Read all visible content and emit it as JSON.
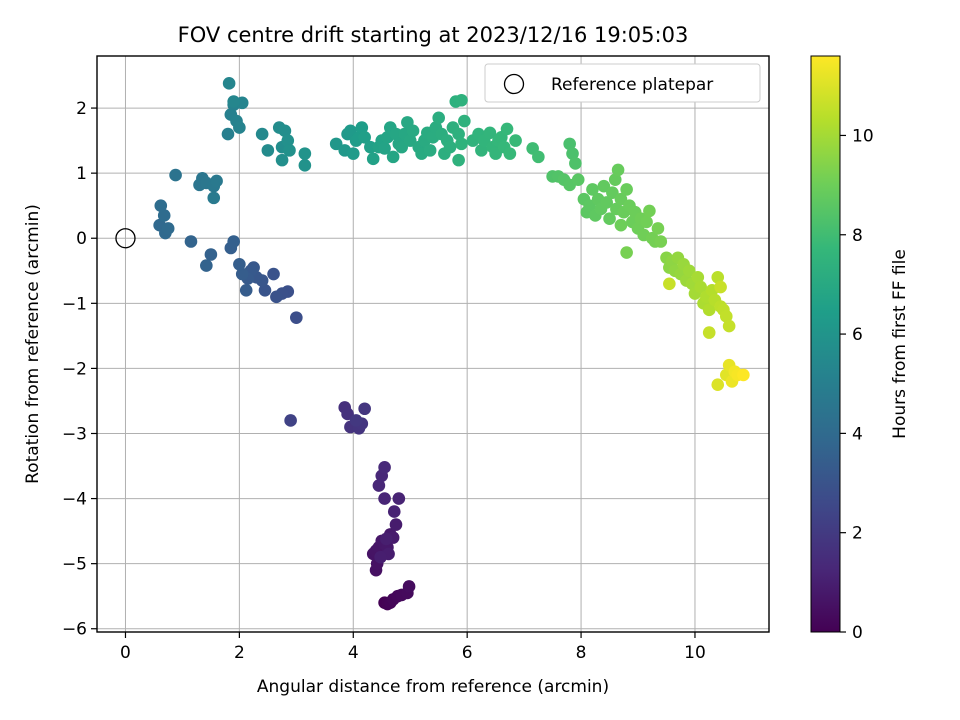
{
  "chart_data": {
    "type": "scatter",
    "title": "FOV centre drift starting at 2023/12/16 19:05:03",
    "xlabel": "Angular distance from reference (arcmin)",
    "ylabel": "Rotation from reference (arcmin)",
    "xlim": [
      -0.5,
      11.3
    ],
    "ylim": [
      -6.05,
      2.8
    ],
    "xticks": [
      0,
      2,
      4,
      6,
      8,
      10
    ],
    "yticks": [
      -6,
      -5,
      -4,
      -3,
      -2,
      -1,
      0,
      1,
      2
    ],
    "xtick_labels": [
      "0",
      "2",
      "4",
      "6",
      "8",
      "10"
    ],
    "ytick_labels": [
      "−6",
      "−5",
      "−4",
      "−3",
      "−2",
      "−1",
      "0",
      "1",
      "2"
    ],
    "grid": true,
    "legend": {
      "placement": "top-right",
      "entries": [
        "Reference platepar"
      ]
    },
    "reference_point": {
      "x": 0,
      "y": 0,
      "label": "Reference platepar"
    },
    "colorbar": {
      "label": "Hours from first FF file",
      "colormap": "viridis",
      "range": [
        0,
        11.6
      ],
      "ticks": [
        0,
        2,
        4,
        6,
        8,
        10
      ],
      "tick_labels": [
        "0",
        "2",
        "4",
        "6",
        "8",
        "10"
      ],
      "colors": [
        "#440154",
        "#482878",
        "#3e4989",
        "#31688e",
        "#26828e",
        "#1f9e89",
        "#35b779",
        "#6ece58",
        "#b5de2b",
        "#fde725"
      ]
    },
    "points": [
      [
        4.55,
        -5.6,
        0.0
      ],
      [
        4.6,
        -5.62,
        0.05
      ],
      [
        4.65,
        -5.6,
        0.1
      ],
      [
        4.7,
        -5.55,
        0.15
      ],
      [
        4.78,
        -5.5,
        0.2
      ],
      [
        4.85,
        -5.48,
        0.25
      ],
      [
        4.95,
        -5.45,
        0.3
      ],
      [
        4.98,
        -5.35,
        0.35
      ],
      [
        4.4,
        -5.1,
        0.5
      ],
      [
        4.42,
        -5.0,
        0.55
      ],
      [
        4.35,
        -4.85,
        0.6
      ],
      [
        4.4,
        -4.8,
        0.62
      ],
      [
        4.45,
        -4.75,
        0.65
      ],
      [
        4.5,
        -4.65,
        0.7
      ],
      [
        4.55,
        -4.7,
        0.72
      ],
      [
        4.6,
        -4.75,
        0.75
      ],
      [
        4.65,
        -4.55,
        0.8
      ],
      [
        4.7,
        -4.6,
        0.85
      ],
      [
        4.75,
        -4.4,
        0.9
      ],
      [
        4.62,
        -4.85,
        0.92
      ],
      [
        4.48,
        -4.9,
        0.95
      ],
      [
        4.58,
        -4.62,
        0.98
      ],
      [
        4.72,
        -4.2,
        1.1
      ],
      [
        4.8,
        -4.0,
        1.15
      ],
      [
        4.55,
        -4.0,
        1.2
      ],
      [
        4.45,
        -3.8,
        1.25
      ],
      [
        4.5,
        -3.65,
        1.3
      ],
      [
        4.55,
        -3.52,
        1.35
      ],
      [
        3.85,
        -2.6,
        1.6
      ],
      [
        3.9,
        -2.7,
        1.65
      ],
      [
        3.95,
        -2.9,
        1.7
      ],
      [
        4.1,
        -2.92,
        1.75
      ],
      [
        4.15,
        -2.85,
        1.8
      ],
      [
        4.2,
        -2.62,
        1.85
      ],
      [
        4.05,
        -2.8,
        1.9
      ],
      [
        2.9,
        -2.8,
        2.3
      ],
      [
        3.0,
        -1.22,
        2.8
      ],
      [
        2.85,
        -0.82,
        2.85
      ],
      [
        2.75,
        -0.85,
        2.9
      ],
      [
        2.65,
        -0.9,
        2.95
      ],
      [
        2.6,
        -0.55,
        3.0
      ],
      [
        2.45,
        -0.8,
        3.05
      ],
      [
        2.4,
        -0.65,
        3.1
      ],
      [
        2.3,
        -0.6,
        3.15
      ],
      [
        2.25,
        -0.45,
        3.2
      ],
      [
        2.2,
        -0.5,
        3.25
      ],
      [
        2.15,
        -0.62,
        3.3
      ],
      [
        2.12,
        -0.8,
        3.35
      ],
      [
        2.05,
        -0.55,
        3.4
      ],
      [
        2.0,
        -0.4,
        3.45
      ],
      [
        1.85,
        -0.15,
        3.5
      ],
      [
        1.9,
        -0.05,
        3.55
      ],
      [
        1.5,
        -0.25,
        3.6
      ],
      [
        1.42,
        -0.42,
        3.65
      ],
      [
        1.15,
        -0.05,
        3.7
      ],
      [
        0.6,
        0.2,
        3.9
      ],
      [
        0.7,
        0.08,
        3.95
      ],
      [
        0.75,
        0.15,
        4.0
      ],
      [
        0.68,
        0.35,
        4.05
      ],
      [
        0.62,
        0.5,
        4.1
      ],
      [
        0.88,
        0.97,
        4.4
      ],
      [
        1.3,
        0.82,
        4.5
      ],
      [
        1.35,
        0.92,
        4.55
      ],
      [
        1.42,
        0.85,
        4.6
      ],
      [
        1.55,
        0.8,
        4.65
      ],
      [
        1.6,
        0.88,
        4.7
      ],
      [
        1.55,
        0.62,
        4.75
      ],
      [
        1.8,
        1.6,
        5.0
      ],
      [
        1.85,
        1.9,
        5.05
      ],
      [
        1.9,
        2.05,
        5.1
      ],
      [
        1.95,
        1.8,
        5.15
      ],
      [
        2.0,
        1.7,
        5.2
      ],
      [
        2.05,
        2.08,
        5.25
      ],
      [
        1.82,
        2.38,
        5.3
      ],
      [
        1.9,
        2.1,
        5.35
      ],
      [
        2.4,
        1.6,
        5.5
      ],
      [
        2.5,
        1.35,
        5.55
      ],
      [
        2.7,
        1.7,
        5.6
      ],
      [
        2.75,
        1.4,
        5.65
      ],
      [
        2.8,
        1.65,
        5.7
      ],
      [
        2.75,
        1.2,
        5.75
      ],
      [
        2.85,
        1.5,
        5.8
      ],
      [
        2.88,
        1.35,
        5.85
      ],
      [
        3.15,
        1.12,
        5.9
      ],
      [
        3.15,
        1.3,
        5.95
      ],
      [
        3.7,
        1.45,
        6.1
      ],
      [
        3.85,
        1.35,
        6.15
      ],
      [
        3.9,
        1.6,
        6.2
      ],
      [
        3.95,
        1.65,
        6.25
      ],
      [
        4.0,
        1.3,
        6.3
      ],
      [
        4.05,
        1.5,
        6.35
      ],
      [
        4.1,
        1.55,
        6.4
      ],
      [
        4.15,
        1.7,
        6.45
      ],
      [
        4.2,
        1.55,
        6.5
      ],
      [
        4.3,
        1.4,
        6.55
      ],
      [
        4.35,
        1.22,
        6.6
      ],
      [
        4.45,
        1.4,
        6.65
      ],
      [
        4.5,
        1.5,
        6.7
      ],
      [
        4.55,
        1.38,
        6.72
      ],
      [
        4.6,
        1.55,
        6.75
      ],
      [
        4.65,
        1.7,
        6.8
      ],
      [
        4.7,
        1.25,
        6.82
      ],
      [
        4.75,
        1.6,
        6.85
      ],
      [
        4.8,
        1.45,
        6.88
      ],
      [
        4.85,
        1.4,
        6.9
      ],
      [
        4.9,
        1.6,
        6.92
      ],
      [
        4.95,
        1.78,
        6.95
      ],
      [
        5.0,
        1.5,
        6.97
      ],
      [
        5.05,
        1.65,
        7.0
      ],
      [
        5.15,
        1.4,
        7.02
      ],
      [
        5.2,
        1.3,
        7.05
      ],
      [
        5.25,
        1.5,
        7.07
      ],
      [
        5.3,
        1.62,
        7.1
      ],
      [
        5.35,
        1.35,
        7.12
      ],
      [
        5.4,
        1.55,
        7.15
      ],
      [
        5.45,
        1.7,
        7.17
      ],
      [
        5.5,
        1.85,
        7.2
      ],
      [
        5.55,
        1.6,
        7.22
      ],
      [
        5.6,
        1.3,
        7.25
      ],
      [
        5.65,
        1.5,
        7.27
      ],
      [
        5.7,
        1.4,
        7.3
      ],
      [
        5.75,
        1.7,
        7.32
      ],
      [
        5.8,
        2.1,
        7.35
      ],
      [
        5.85,
        1.6,
        7.37
      ],
      [
        5.9,
        2.12,
        7.4
      ],
      [
        5.95,
        1.8,
        7.42
      ],
      [
        5.85,
        1.2,
        7.44
      ],
      [
        5.9,
        1.45,
        7.46
      ],
      [
        6.1,
        1.5,
        7.5
      ],
      [
        6.2,
        1.6,
        7.52
      ],
      [
        6.25,
        1.35,
        7.55
      ],
      [
        6.3,
        1.5,
        7.57
      ],
      [
        6.4,
        1.62,
        7.6
      ],
      [
        6.45,
        1.4,
        7.62
      ],
      [
        6.5,
        1.3,
        7.65
      ],
      [
        6.55,
        1.5,
        7.67
      ],
      [
        6.6,
        1.55,
        7.7
      ],
      [
        6.65,
        1.4,
        7.72
      ],
      [
        6.7,
        1.68,
        7.75
      ],
      [
        6.75,
        1.3,
        7.77
      ],
      [
        6.85,
        1.5,
        7.8
      ],
      [
        7.15,
        1.38,
        7.95
      ],
      [
        7.25,
        1.25,
        8.0
      ],
      [
        7.8,
        1.45,
        8.2
      ],
      [
        7.85,
        1.3,
        8.25
      ],
      [
        7.9,
        1.15,
        8.3
      ],
      [
        7.5,
        0.95,
        8.35
      ],
      [
        7.6,
        0.95,
        8.4
      ],
      [
        7.7,
        0.9,
        8.45
      ],
      [
        7.8,
        0.82,
        8.5
      ],
      [
        7.95,
        0.9,
        8.55
      ],
      [
        8.05,
        0.6,
        8.6
      ],
      [
        8.1,
        0.4,
        8.62
      ],
      [
        8.15,
        0.5,
        8.64
      ],
      [
        8.2,
        0.75,
        8.66
      ],
      [
        8.25,
        0.35,
        8.68
      ],
      [
        8.3,
        0.6,
        8.7
      ],
      [
        8.35,
        0.45,
        8.72
      ],
      [
        8.4,
        0.8,
        8.74
      ],
      [
        8.45,
        0.55,
        8.76
      ],
      [
        8.5,
        0.3,
        8.78
      ],
      [
        8.55,
        0.7,
        8.8
      ],
      [
        8.6,
        0.9,
        8.82
      ],
      [
        8.62,
        0.45,
        8.84
      ],
      [
        8.65,
        1.05,
        8.86
      ],
      [
        8.7,
        0.6,
        8.88
      ],
      [
        8.75,
        0.4,
        8.9
      ],
      [
        8.8,
        0.75,
        8.92
      ],
      [
        8.85,
        0.5,
        8.94
      ],
      [
        8.9,
        0.25,
        8.96
      ],
      [
        8.95,
        0.4,
        8.98
      ],
      [
        8.7,
        0.2,
        9.0
      ],
      [
        9.0,
        0.15,
        9.02
      ],
      [
        9.05,
        0.3,
        9.04
      ],
      [
        9.1,
        0.05,
        9.06
      ],
      [
        9.15,
        0.25,
        9.08
      ],
      [
        9.2,
        0.42,
        9.1
      ],
      [
        9.25,
        0.0,
        9.12
      ],
      [
        9.3,
        -0.05,
        9.14
      ],
      [
        9.35,
        0.15,
        9.16
      ],
      [
        8.8,
        -0.22,
        9.18
      ],
      [
        9.4,
        -0.05,
        9.2
      ],
      [
        9.5,
        -0.3,
        9.5
      ],
      [
        9.55,
        -0.45,
        9.55
      ],
      [
        9.6,
        -0.35,
        9.6
      ],
      [
        9.65,
        -0.5,
        9.65
      ],
      [
        9.7,
        -0.3,
        9.7
      ],
      [
        9.75,
        -0.55,
        9.75
      ],
      [
        9.8,
        -0.4,
        9.8
      ],
      [
        9.85,
        -0.65,
        9.85
      ],
      [
        9.9,
        -0.5,
        9.9
      ],
      [
        9.95,
        -0.7,
        9.95
      ],
      [
        10.0,
        -0.85,
        10.0
      ],
      [
        10.05,
        -0.6,
        10.05
      ],
      [
        10.1,
        -0.75,
        10.1
      ],
      [
        10.15,
        -1.0,
        10.15
      ],
      [
        10.2,
        -0.9,
        10.2
      ],
      [
        10.25,
        -1.1,
        10.25
      ],
      [
        10.3,
        -0.8,
        10.3
      ],
      [
        10.35,
        -0.95,
        10.35
      ],
      [
        10.4,
        -0.6,
        10.4
      ],
      [
        10.45,
        -1.05,
        10.45
      ],
      [
        10.5,
        -1.1,
        10.5
      ],
      [
        10.55,
        -1.2,
        10.55
      ],
      [
        10.6,
        -1.35,
        10.6
      ],
      [
        10.25,
        -1.45,
        10.62
      ],
      [
        9.55,
        -0.7,
        10.64
      ],
      [
        10.45,
        -0.75,
        10.66
      ],
      [
        10.4,
        -2.25,
        11.0
      ],
      [
        10.55,
        -2.1,
        11.1
      ],
      [
        10.6,
        -1.95,
        11.2
      ],
      [
        10.65,
        -2.2,
        11.3
      ],
      [
        10.7,
        -2.05,
        11.4
      ],
      [
        10.75,
        -2.1,
        11.5
      ],
      [
        10.85,
        -2.1,
        11.6
      ]
    ]
  }
}
